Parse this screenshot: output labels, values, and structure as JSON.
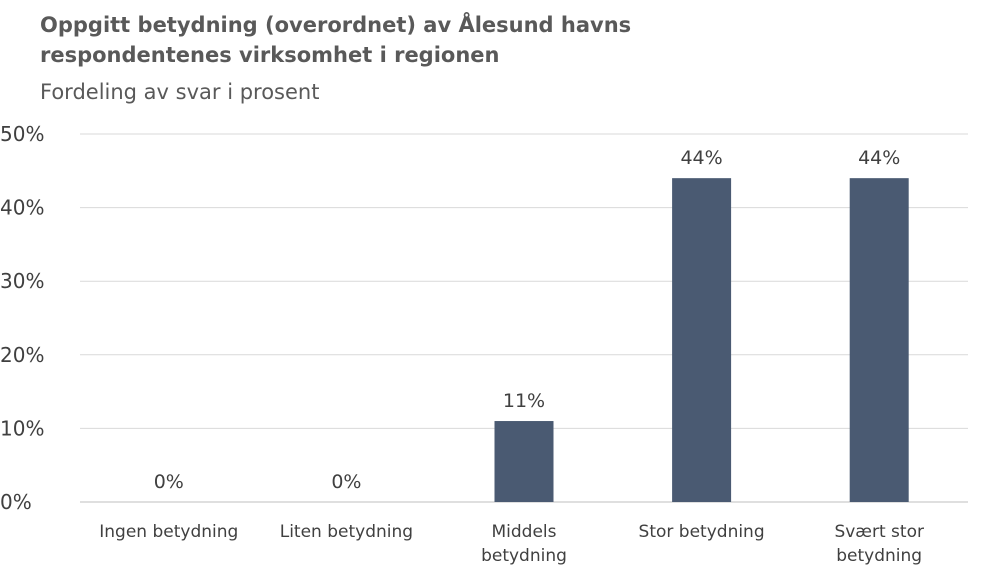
{
  "chart_data": {
    "type": "bar",
    "title_lines": [
      "Oppgitt betydning (overordnet) av Ålesund havns",
      "respondentenes virksomhet i regionen"
    ],
    "subtitle": "Fordeling av svar i prosent",
    "categories": [
      [
        "Ingen betydning"
      ],
      [
        "Liten betydning"
      ],
      [
        "Middels",
        "betydning"
      ],
      [
        "Stor betydning"
      ],
      [
        "Svært stor",
        "betydning"
      ]
    ],
    "values": [
      0,
      0,
      11,
      44,
      44
    ],
    "data_labels": [
      "0%",
      "0%",
      "11%",
      "44%",
      "44%"
    ],
    "ylim": [
      0,
      50
    ],
    "yticks": [
      0,
      10,
      20,
      30,
      40,
      50
    ],
    "ytick_labels": [
      "0%",
      "10%",
      "20%",
      "30%",
      "40%",
      "50%"
    ],
    "grid": true,
    "bar_color": "#4a5a72",
    "grid_color": "#d9d9d9"
  }
}
